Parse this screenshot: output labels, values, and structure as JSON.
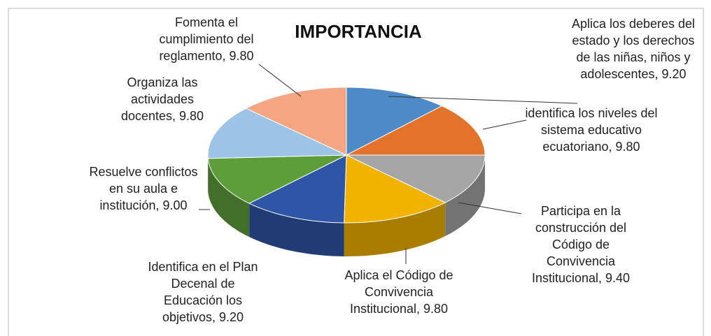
{
  "chart_data": {
    "type": "pie",
    "title": "IMPORTANCIA",
    "categories": [
      "Aplica los deberes del estado y los derechos de las niñas, niños y adolescentes",
      "identifica los niveles del sistema educativo ecuatoriano",
      "Participa en la construcción del Código de Convivencia Institucional",
      "Aplica el  Código de Convivencia Institucional",
      "Identifica en el Plan Decenal de Educación los objetivos",
      "Resuelve conflictos en su aula e institución",
      "Organiza las actividades docentes",
      "Fomenta el cumplimiento del reglamento"
    ],
    "values": [
      9.2,
      9.8,
      9.4,
      9.8,
      9.2,
      9.0,
      9.8,
      9.8
    ],
    "value_labels": [
      "9.20",
      "9.80",
      "9.40",
      "9.80",
      "9.20",
      "9.00",
      "9.80",
      "9.80"
    ],
    "colors": [
      "#4e8ac8",
      "#e3722b",
      "#a5a5a5",
      "#f2b300",
      "#2f56a6",
      "#5e9e3a",
      "#9dc3e6",
      "#f4a582"
    ]
  }
}
